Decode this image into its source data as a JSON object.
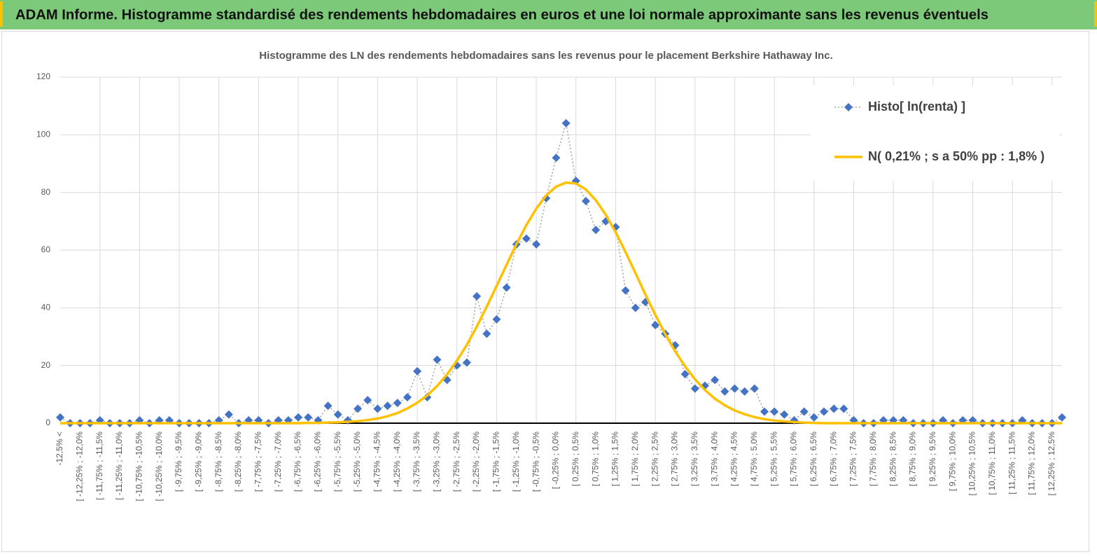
{
  "header": {
    "title": "ADAM Informe. Histogramme standardisé des rendements hebdomadaires en euros et une loi normale approximante sans les revenus éventuels"
  },
  "chart_data": {
    "type": "line",
    "title": "Histogramme des LN des rendements hebdomadaires sans les revenus pour le placement Berkshire Hathaway Inc.",
    "categories": [
      "-12,5% <",
      null,
      "[ -12,25% ; -12,0%",
      null,
      "[ -11,75% ; -11,5%",
      null,
      "[ -11,25% ; -11,0%",
      null,
      "[ -10,75% ; -10,5%",
      null,
      "[ -10,25% ; -10,0%",
      null,
      "[ -9,75% ; -9,5%",
      null,
      "[ -9,25% ; -9,0%",
      null,
      "[ -8,75% ; -8,5%",
      null,
      "[ -8,25% ; -8,0%",
      null,
      "[ -7,75% ; -7,5%",
      null,
      "[ -7,25% ; -7,0%",
      null,
      "[ -6,75% ; -6,5%",
      null,
      "[ -6,25% ; -6,0%",
      null,
      "[ -5,75% ; -5,5%",
      null,
      "[ -5,25% ; -5,0%",
      null,
      "[ -4,75% ; -4,5%",
      null,
      "[ -4,25% ; -4,0%",
      null,
      "[ -3,75% ; -3,5%",
      null,
      "[ -3,25% ; -3,0%",
      null,
      "[ -2,75% ; -2,5%",
      null,
      "[ -2,25% ; -2,0%",
      null,
      "[ -1,75% ; -1,5%",
      null,
      "[ -1,25% ; -1,0%",
      null,
      "[ -0,75% ; -0,5%",
      null,
      "[ -0,25% ; 0,0%",
      null,
      "[ 0,25% ; 0,5%",
      null,
      "[ 0,75% ; 1,0%",
      null,
      "[ 1,25% ; 1,5%",
      null,
      "[ 1,75% ; 2,0%",
      null,
      "[ 2,25% ; 2,5%",
      null,
      "[ 2,75% ; 3,0%",
      null,
      "[ 3,25% ; 3,5%",
      null,
      "[ 3,75% ; 4,0%",
      null,
      "[ 4,25% ; 4,5%",
      null,
      "[ 4,75% ; 5,0%",
      null,
      "[ 5,25% ; 5,5%",
      null,
      "[ 5,75% ; 6,0%",
      null,
      "[ 6,25% ; 6,5%",
      null,
      "[ 6,75% ; 7,0%",
      null,
      "[ 7,25% ; 7,5%",
      null,
      "[ 7,75% ; 8,0%",
      null,
      "[ 8,25% ; 8,5%",
      null,
      "[ 8,75% ; 9,0%",
      null,
      "[ 9,25% ; 9,5%",
      null,
      "[ 9,75% ; 10,0%",
      null,
      "[ 10,25% ; 10,5%",
      null,
      "[ 10,75% ; 11,0%",
      null,
      "[ 11,25% ; 11,5%",
      null,
      "[ 11,75% ; 12,0%",
      null,
      "[ 12,25% ; 12,5%",
      null
    ],
    "series": [
      {
        "name": "Histo[ ln(renta) ]",
        "color": "#4472c4",
        "line_color": "#a6a6a6",
        "line_style": "dotted",
        "marker": "diamond",
        "values": [
          2,
          0,
          0,
          0,
          1,
          0,
          0,
          0,
          1,
          0,
          1,
          1,
          0,
          0,
          0,
          0,
          1,
          3,
          0,
          1,
          1,
          0,
          1,
          1,
          2,
          2,
          1,
          6,
          3,
          1,
          5,
          8,
          5,
          6,
          7,
          9,
          18,
          9,
          22,
          15,
          20,
          21,
          44,
          31,
          36,
          47,
          62,
          64,
          62,
          78,
          92,
          104,
          84,
          77,
          67,
          70,
          68,
          46,
          40,
          42,
          34,
          31,
          27,
          17,
          12,
          13,
          15,
          11,
          12,
          11,
          12,
          4,
          4,
          3,
          1,
          4,
          2,
          4,
          5,
          5,
          1,
          0,
          0,
          1,
          1,
          1,
          0,
          0,
          0,
          1,
          0,
          1,
          1,
          0,
          0,
          0,
          0,
          1,
          0,
          0,
          0,
          2
        ]
      },
      {
        "name": "N( 0,21% ; s a 50% pp : 1,8% )",
        "color": "#ffc000",
        "line_style": "solid",
        "marker": "none",
        "values": [
          0,
          0,
          0,
          0,
          0,
          0,
          0,
          0,
          0,
          0,
          0,
          0,
          0,
          0,
          0,
          0,
          0,
          0,
          0,
          0,
          0,
          0,
          0,
          0,
          0,
          0.1,
          0.1,
          0.2,
          0.3,
          0.5,
          0.7,
          1.1,
          1.6,
          2.4,
          3.5,
          5.1,
          7.1,
          9.6,
          12.9,
          16.9,
          21.7,
          27.2,
          33.5,
          40.4,
          47.6,
          54.9,
          62.1,
          68.7,
          74.4,
          79.0,
          82.0,
          83.4,
          83.1,
          81.0,
          77.3,
          72.3,
          66.2,
          59.3,
          52.0,
          44.6,
          37.6,
          30.9,
          24.9,
          19.7,
          15.2,
          11.5,
          8.5,
          6.2,
          4.4,
          3.1,
          2.1,
          1.4,
          0.9,
          0.6,
          0.4,
          0.2,
          0.1,
          0,
          0,
          0,
          0,
          0,
          0,
          0,
          0,
          0,
          0,
          0,
          0,
          0,
          0,
          0,
          0,
          0,
          0,
          0,
          0,
          0,
          0,
          0,
          0,
          0
        ]
      }
    ],
    "ylim": [
      0,
      120
    ],
    "yticks": [
      0,
      20,
      40,
      60,
      80,
      100,
      120
    ],
    "grid": true,
    "legend": "upper right"
  }
}
